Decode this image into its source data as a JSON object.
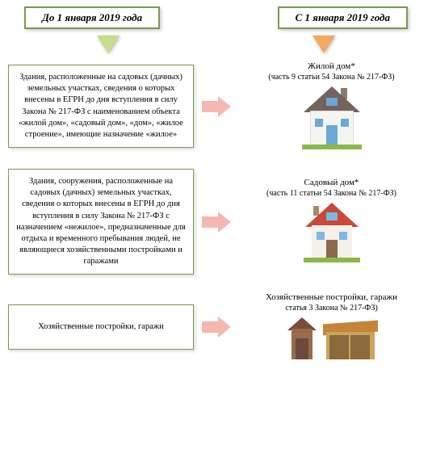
{
  "headers": {
    "left": "До 1 января 2019 года",
    "right": "С 1 января 2019 года"
  },
  "colors": {
    "border": "#7a9a4a",
    "arrow_down_left": "#c5dc8a",
    "arrow_down_right": "#f4a860",
    "arrow_right": "#f5b8b0"
  },
  "rows": [
    {
      "left_text": "Здания, расположенные на садовых (дачных) земельных участках, сведения о которых внесены в ЕГРН до дня вступления в силу Закона № 217-ФЗ с наименованием объекта «жилой дом», «садовый дом», «дом», «жилое строение», имеющие назначение «жилое»",
      "right_title": "Жилой дом*",
      "right_sub": "(часть 9 статьи 54 Закона № 217-ФЗ)",
      "icon": "house-white"
    },
    {
      "left_text": "Здания, сооружения, расположенные на садовых (дачных) земельных участках, сведения о которых внесены в ЕГРН до дня вступления в силу Закона № 217-ФЗ с назначением «нежилое», предназначенные для отдыха и временного пребывания людей, не являющиеся хозяйственными постройками и гаражами",
      "right_title": "Садовый дом*",
      "right_sub": "(часть 11 статьи 54 Закона № 217-ФЗ)",
      "icon": "house-red"
    },
    {
      "left_text": "Хозяйственные постройки, гаражи",
      "right_title": "Хозяйственные постройки, гаражи",
      "right_sub": "статья 3 Закона № 217-ФЗ)",
      "icon": "sheds"
    }
  ]
}
